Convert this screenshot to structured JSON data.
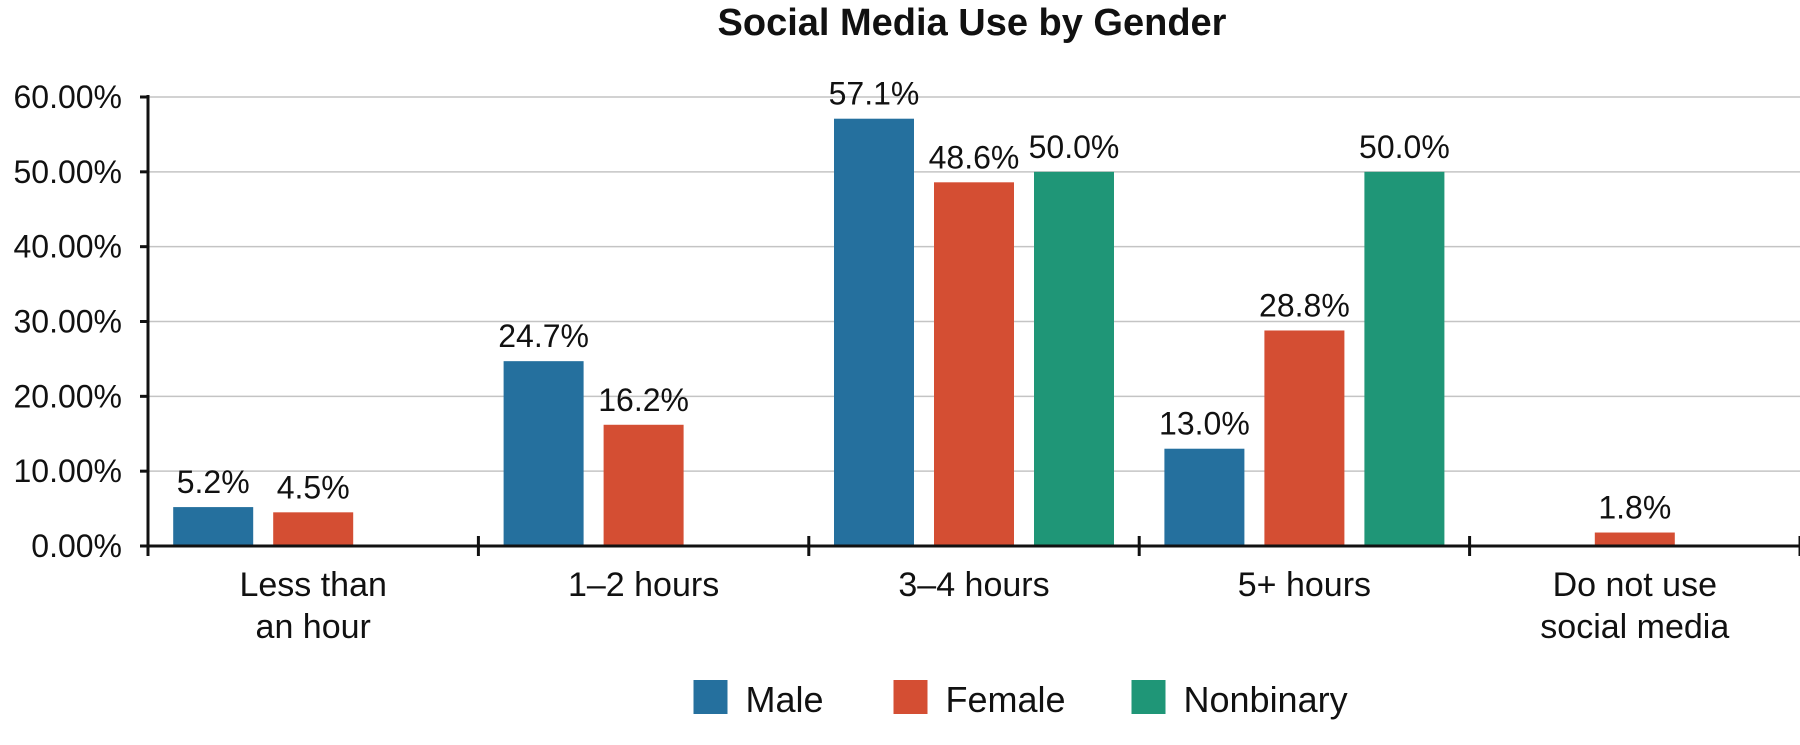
{
  "chart_data": {
    "type": "bar",
    "title": "Social Media Use by Gender",
    "xlabel": "",
    "ylabel": "",
    "ylim": [
      0,
      60
    ],
    "yticks": [
      "0.00%",
      "10.00%",
      "20.00%",
      "30.00%",
      "40.00%",
      "50.00%",
      "60.00%"
    ],
    "categories": [
      [
        "Less than",
        "an hour"
      ],
      [
        "1–2 hours"
      ],
      [
        "3–4 hours"
      ],
      [
        "5+ hours"
      ],
      [
        "Do not use",
        "social media"
      ]
    ],
    "series": [
      {
        "name": "Male",
        "color": "#25709e",
        "values": [
          5.2,
          24.7,
          57.1,
          13.0,
          null
        ],
        "labels": [
          "5.2%",
          "24.7%",
          "57.1%",
          "13.0%",
          ""
        ]
      },
      {
        "name": "Female",
        "color": "#d44e33",
        "values": [
          4.5,
          16.2,
          48.6,
          28.8,
          1.8
        ],
        "labels": [
          "4.5%",
          "16.2%",
          "48.6%",
          "28.8%",
          "1.8%"
        ]
      },
      {
        "name": "Nonbinary",
        "color": "#1f9677",
        "values": [
          null,
          null,
          50.0,
          50.0,
          null
        ],
        "labels": [
          "",
          "",
          "50.0%",
          "50.0%",
          ""
        ]
      }
    ],
    "grid": true,
    "legend": "bottom-center"
  }
}
